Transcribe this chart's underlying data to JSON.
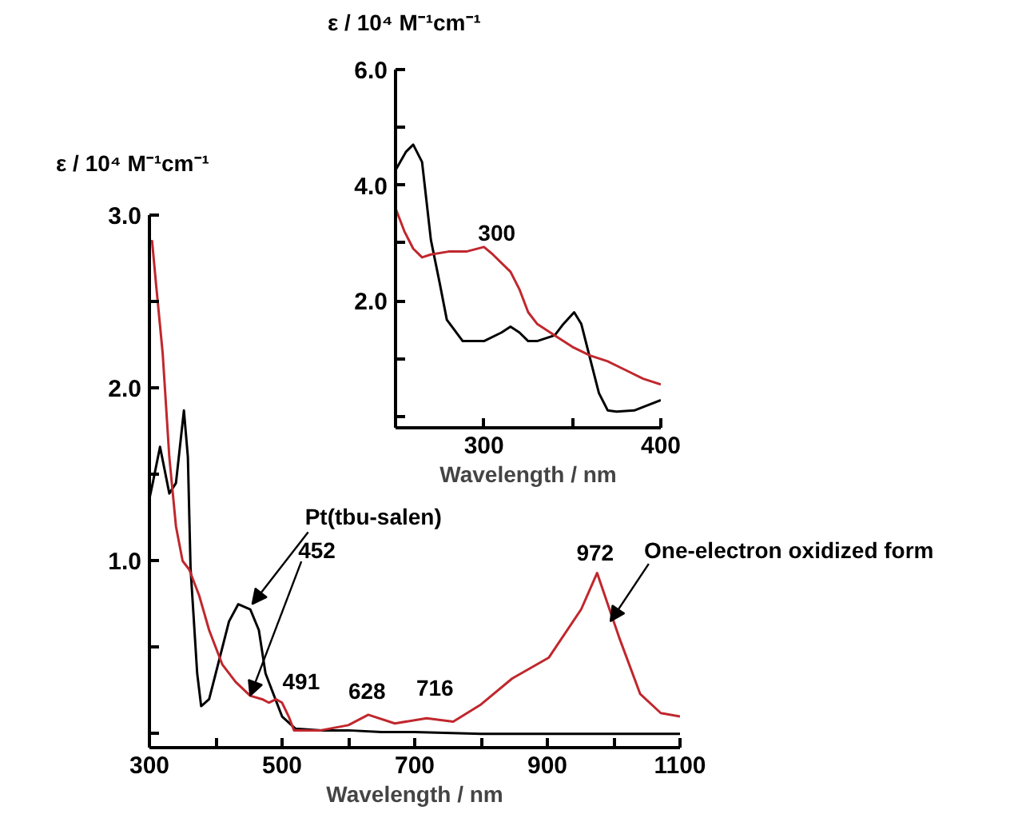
{
  "chart_data": [
    {
      "type": "line",
      "xlabel": "Wavelength / nm",
      "ylabel": "ε / 10⁴ M⁻¹cm⁻¹",
      "xlim": [
        300,
        1100
      ],
      "ylim": [
        -0.08,
        3.0
      ],
      "xticks": [
        300,
        {
          "value": 400,
          "label": null
        },
        500,
        {
          "value": 600,
          "label": null
        },
        700,
        {
          "value": 800,
          "label": null
        },
        900,
        {
          "value": 1000,
          "label": null
        },
        1100
      ],
      "yticks": [
        {
          "value": 0,
          "label": null
        },
        {
          "value": 0.5,
          "label": null
        },
        {
          "value": 1.0,
          "label": "1.0"
        },
        {
          "value": 1.5,
          "label": null
        },
        {
          "value": 2.0,
          "label": "2.0"
        },
        {
          "value": 2.5,
          "label": null
        },
        {
          "value": 3.0,
          "label": "3.0"
        }
      ],
      "grid": false,
      "legend": false,
      "series": [
        {
          "color": "#000000",
          "x": [
            300,
            305,
            316,
            330,
            340,
            352,
            358,
            362,
            372,
            378,
            390,
            400,
            420,
            434,
            452,
            465,
            475,
            490,
            500,
            520,
            560,
            600,
            650,
            700,
            800,
            1100
          ],
          "values": [
            1.36,
            1.45,
            1.66,
            1.39,
            1.45,
            1.87,
            1.6,
            0.96,
            0.35,
            0.16,
            0.2,
            0.35,
            0.65,
            0.75,
            0.72,
            0.6,
            0.35,
            0.2,
            0.1,
            0.03,
            0.02,
            0.02,
            0.01,
            0.01,
            0.0,
            0.0
          ]
        },
        {
          "color": "#c0272d",
          "x": [
            300,
            304,
            310,
            320,
            330,
            340,
            350,
            360,
            375,
            390,
            410,
            430,
            452,
            470,
            480,
            491,
            500,
            510,
            518,
            558,
            600,
            630,
            670,
            718,
            758,
            800,
            847,
            902,
            951,
            975,
            1008,
            1040,
            1071,
            1100
          ],
          "values": [
            2.85,
            2.85,
            2.6,
            2.2,
            1.6,
            1.2,
            1.0,
            0.95,
            0.8,
            0.6,
            0.4,
            0.3,
            0.22,
            0.2,
            0.18,
            0.2,
            0.18,
            0.1,
            0.02,
            0.02,
            0.05,
            0.11,
            0.06,
            0.09,
            0.07,
            0.17,
            0.32,
            0.44,
            0.72,
            0.93,
            0.56,
            0.23,
            0.12,
            0.1
          ]
        }
      ],
      "annotations": [
        {
          "text": "Pt(tbu-salen)",
          "x": 455,
          "y": 0.75
        },
        {
          "text": "452",
          "x": 452,
          "y": 0.22
        },
        {
          "text": "491",
          "x": 491,
          "y": 0.2
        },
        {
          "text": "628",
          "x": 628,
          "y": 0.11
        },
        {
          "text": "716",
          "x": 716,
          "y": 0.09
        },
        {
          "text": "972",
          "x": 972,
          "y": 0.93
        },
        {
          "text": "One-electron oxidized form",
          "x": 995,
          "y": 0.65
        }
      ]
    },
    {
      "type": "line",
      "xlabel": "Wavelength / nm",
      "ylabel": "ε / 10⁴ M⁻¹cm⁻¹",
      "xlim": [
        250,
        400
      ],
      "ylim": [
        -0.2,
        6.0
      ],
      "xticks": [
        300,
        {
          "value": 350,
          "label": null
        },
        400
      ],
      "yticks": [
        {
          "value": 0,
          "label": null
        },
        {
          "value": 1,
          "label": null
        },
        {
          "value": 2,
          "label": "2.0"
        },
        {
          "value": 3,
          "label": null
        },
        {
          "value": 4,
          "label": "4.0"
        },
        {
          "value": 5,
          "label": null
        },
        {
          "value": 6,
          "label": "6.0"
        }
      ],
      "grid": false,
      "legend": false,
      "series": [
        {
          "color": "#000000",
          "x": [
            250,
            256,
            260,
            265,
            270,
            275,
            279,
            288,
            300,
            310,
            315,
            320,
            325,
            330,
            340,
            345,
            351,
            355,
            360,
            365,
            370,
            375,
            385,
            400
          ],
          "values": [
            4.26,
            4.58,
            4.7,
            4.4,
            3.05,
            2.3,
            1.67,
            1.3,
            1.3,
            1.45,
            1.55,
            1.45,
            1.3,
            1.3,
            1.4,
            1.6,
            1.8,
            1.6,
            1.0,
            0.4,
            0.1,
            0.08,
            0.1,
            0.28
          ]
        },
        {
          "color": "#c0272d",
          "x": [
            250,
            255,
            260,
            265,
            270,
            280,
            290,
            300,
            305,
            315,
            320,
            325,
            330,
            340,
            350,
            360,
            370,
            380,
            390,
            400
          ],
          "values": [
            3.6,
            3.2,
            2.9,
            2.75,
            2.8,
            2.85,
            2.85,
            2.93,
            2.8,
            2.5,
            2.2,
            1.8,
            1.6,
            1.4,
            1.2,
            1.05,
            0.95,
            0.8,
            0.65,
            0.55
          ]
        }
      ],
      "annotations": [
        {
          "text": "300",
          "x": 300,
          "y": 2.93
        }
      ]
    }
  ]
}
